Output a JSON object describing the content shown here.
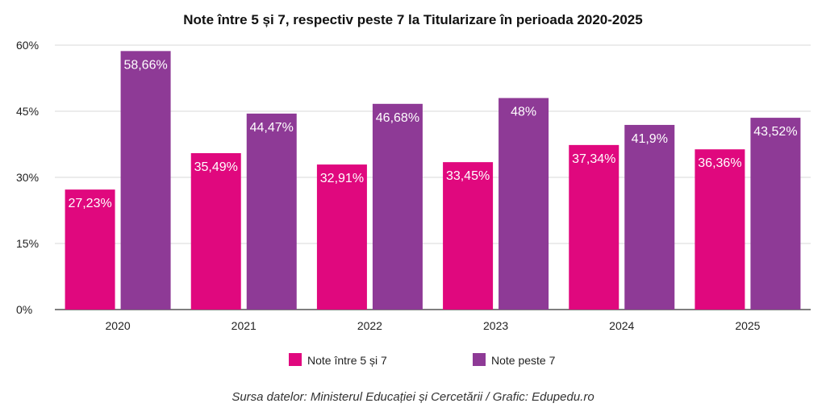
{
  "chart_data": {
    "type": "bar",
    "title": "Note între 5 și 7, respectiv peste 7 la Titularizare în perioada 2020-2025",
    "categories": [
      "2020",
      "2021",
      "2022",
      "2023",
      "2024",
      "2025"
    ],
    "series": [
      {
        "name": "Note între 5 și 7",
        "color": "#e0087e",
        "values": [
          27.23,
          35.49,
          32.91,
          33.45,
          37.34,
          36.36
        ],
        "labels": [
          "27,23%",
          "35,49%",
          "32,91%",
          "33,45%",
          "37,34%",
          "36,36%"
        ]
      },
      {
        "name": "Note peste 7",
        "color": "#8e3a96",
        "values": [
          58.66,
          44.47,
          46.68,
          48,
          41.9,
          43.52
        ],
        "labels": [
          "58,66%",
          "44,47%",
          "46,68%",
          "48%",
          "41,9%",
          "43,52%"
        ]
      }
    ],
    "ylim": [
      0,
      60
    ],
    "yticks": [
      0,
      15,
      30,
      45,
      60
    ],
    "ytick_labels": [
      "0%",
      "15%",
      "30%",
      "45%",
      "60%"
    ],
    "xlabel": "",
    "ylabel": "",
    "grid": true,
    "legend": "bottom-center",
    "gridColor": "#d9d9d9",
    "axisColor": "#333333"
  },
  "source": "Sursa datelor: Ministerul Educației și Cercetării / Grafic: Edupedu.ro"
}
